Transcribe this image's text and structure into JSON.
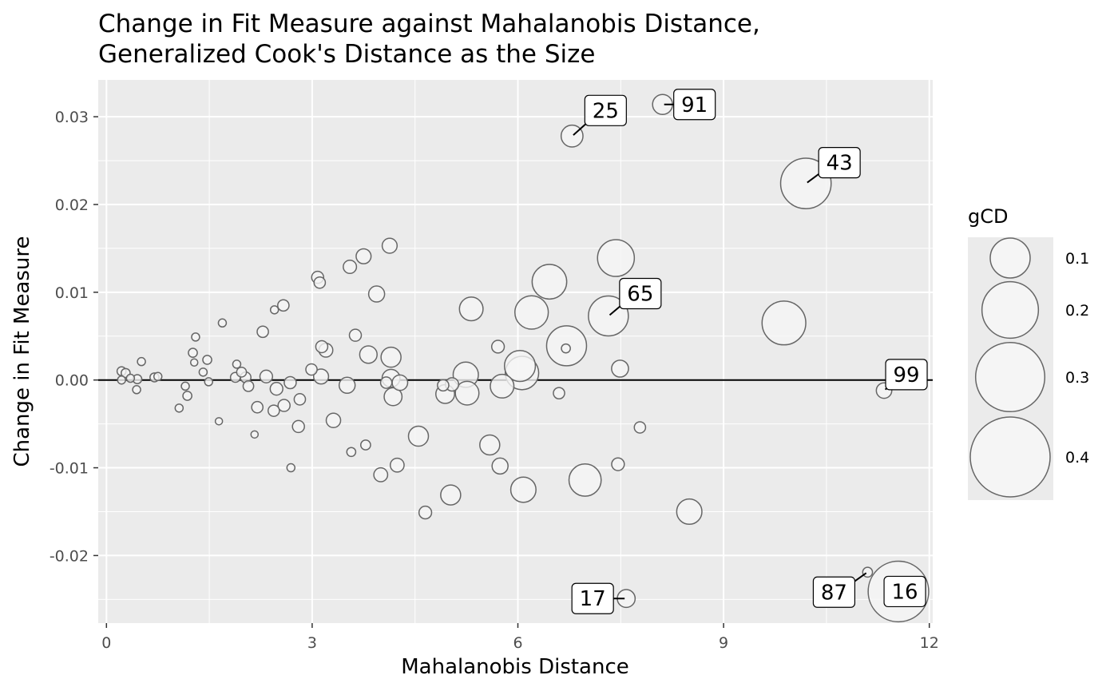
{
  "chart_data": {
    "type": "scatter",
    "title": "Change in Fit Measure against Mahalanobis Distance,",
    "subtitle": "Generalized Cook's Distance as the Size",
    "xlabel": "Mahalanobis Distance",
    "ylabel": "Change in Fit Measure",
    "xlim": [
      -0.12,
      12.05
    ],
    "ylim": [
      -0.0277,
      0.0342
    ],
    "x_ticks": [
      0,
      3,
      6,
      9,
      12
    ],
    "x_tick_labels": [
      "0",
      "3",
      "6",
      "9",
      "12"
    ],
    "y_ticks": [
      -0.02,
      -0.01,
      0.0,
      0.01,
      0.02,
      0.03
    ],
    "y_tick_labels": [
      "-0.02",
      "-0.01",
      "0.00",
      "0.01",
      "0.02",
      "0.03"
    ],
    "hline": 0.0,
    "grid": true,
    "size_legend": {
      "title": "gCD",
      "placement": "right",
      "breaks": [
        0.1,
        0.2,
        0.3,
        0.4
      ],
      "labels": [
        "0.1",
        "0.2",
        "0.3",
        "0.4"
      ]
    },
    "points": [
      {
        "x": 0.22,
        "y": 0.001,
        "gcd": 0.005
      },
      {
        "x": 0.28,
        "y": 0.0008,
        "gcd": 0.005
      },
      {
        "x": 0.22,
        "y": 0.0,
        "gcd": 0.004
      },
      {
        "x": 0.35,
        "y": 0.0002,
        "gcd": 0.004
      },
      {
        "x": 0.45,
        "y": 0.0001,
        "gcd": 0.005
      },
      {
        "x": 0.44,
        "y": -0.0011,
        "gcd": 0.004
      },
      {
        "x": 0.51,
        "y": 0.0021,
        "gcd": 0.004
      },
      {
        "x": 0.7,
        "y": 0.0003,
        "gcd": 0.005
      },
      {
        "x": 0.75,
        "y": 0.0004,
        "gcd": 0.004
      },
      {
        "x": 1.06,
        "y": -0.0032,
        "gcd": 0.004
      },
      {
        "x": 1.15,
        "y": -0.0007,
        "gcd": 0.004
      },
      {
        "x": 1.18,
        "y": -0.0018,
        "gcd": 0.005
      },
      {
        "x": 1.26,
        "y": 0.0031,
        "gcd": 0.005
      },
      {
        "x": 1.3,
        "y": 0.0049,
        "gcd": 0.004
      },
      {
        "x": 1.28,
        "y": 0.002,
        "gcd": 0.003
      },
      {
        "x": 1.41,
        "y": 0.0009,
        "gcd": 0.004
      },
      {
        "x": 1.47,
        "y": 0.0023,
        "gcd": 0.005
      },
      {
        "x": 1.49,
        "y": -0.0002,
        "gcd": 0.004
      },
      {
        "x": 1.64,
        "y": -0.0047,
        "gcd": 0.003
      },
      {
        "x": 1.69,
        "y": 0.0065,
        "gcd": 0.004
      },
      {
        "x": 1.9,
        "y": 0.0018,
        "gcd": 0.004
      },
      {
        "x": 1.88,
        "y": 0.0003,
        "gcd": 0.006
      },
      {
        "x": 1.97,
        "y": 0.0009,
        "gcd": 0.006
      },
      {
        "x": 2.03,
        "y": 0.0003,
        "gcd": 0.007
      },
      {
        "x": 2.07,
        "y": -0.0007,
        "gcd": 0.007
      },
      {
        "x": 2.16,
        "y": -0.0062,
        "gcd": 0.003
      },
      {
        "x": 2.2,
        "y": -0.0031,
        "gcd": 0.008
      },
      {
        "x": 2.28,
        "y": 0.0055,
        "gcd": 0.008
      },
      {
        "x": 2.33,
        "y": 0.0004,
        "gcd": 0.01
      },
      {
        "x": 2.44,
        "y": -0.0035,
        "gcd": 0.008
      },
      {
        "x": 2.48,
        "y": -0.001,
        "gcd": 0.01
      },
      {
        "x": 2.45,
        "y": 0.008,
        "gcd": 0.004
      },
      {
        "x": 2.58,
        "y": 0.0085,
        "gcd": 0.008
      },
      {
        "x": 2.59,
        "y": -0.0029,
        "gcd": 0.009
      },
      {
        "x": 2.68,
        "y": -0.0003,
        "gcd": 0.009
      },
      {
        "x": 2.69,
        "y": -0.01,
        "gcd": 0.004
      },
      {
        "x": 2.8,
        "y": -0.0053,
        "gcd": 0.009
      },
      {
        "x": 2.82,
        "y": -0.0022,
        "gcd": 0.008
      },
      {
        "x": 2.99,
        "y": 0.0012,
        "gcd": 0.008
      },
      {
        "x": 3.08,
        "y": 0.0117,
        "gcd": 0.009
      },
      {
        "x": 3.11,
        "y": 0.0111,
        "gcd": 0.008
      },
      {
        "x": 3.14,
        "y": 0.0038,
        "gcd": 0.009
      },
      {
        "x": 3.13,
        "y": 0.0004,
        "gcd": 0.014
      },
      {
        "x": 3.2,
        "y": 0.0034,
        "gcd": 0.012
      },
      {
        "x": 3.31,
        "y": -0.0046,
        "gcd": 0.013
      },
      {
        "x": 3.51,
        "y": -0.0006,
        "gcd": 0.016
      },
      {
        "x": 3.55,
        "y": 0.0129,
        "gcd": 0.011
      },
      {
        "x": 3.57,
        "y": -0.0082,
        "gcd": 0.005
      },
      {
        "x": 3.63,
        "y": 0.0051,
        "gcd": 0.009
      },
      {
        "x": 3.75,
        "y": 0.0141,
        "gcd": 0.014
      },
      {
        "x": 3.78,
        "y": -0.0074,
        "gcd": 0.006
      },
      {
        "x": 3.82,
        "y": 0.0029,
        "gcd": 0.019
      },
      {
        "x": 3.94,
        "y": 0.0098,
        "gcd": 0.016
      },
      {
        "x": 4.0,
        "y": -0.0108,
        "gcd": 0.012
      },
      {
        "x": 4.08,
        "y": -0.0003,
        "gcd": 0.008
      },
      {
        "x": 4.13,
        "y": 0.0153,
        "gcd": 0.014
      },
      {
        "x": 4.15,
        "y": 0.0026,
        "gcd": 0.025
      },
      {
        "x": 4.15,
        "y": 0.0002,
        "gcd": 0.02
      },
      {
        "x": 4.18,
        "y": -0.0019,
        "gcd": 0.02
      },
      {
        "x": 4.24,
        "y": -0.0097,
        "gcd": 0.012
      },
      {
        "x": 4.28,
        "y": -0.0003,
        "gcd": 0.015
      },
      {
        "x": 4.55,
        "y": -0.0064,
        "gcd": 0.025
      },
      {
        "x": 4.65,
        "y": -0.0151,
        "gcd": 0.01
      },
      {
        "x": 4.91,
        "y": -0.0006,
        "gcd": 0.008
      },
      {
        "x": 4.94,
        "y": -0.0016,
        "gcd": 0.022
      },
      {
        "x": 5.02,
        "y": -0.0131,
        "gcd": 0.025
      },
      {
        "x": 5.04,
        "y": -0.0005,
        "gcd": 0.011
      },
      {
        "x": 5.24,
        "y": 0.0006,
        "gcd": 0.04
      },
      {
        "x": 5.26,
        "y": -0.0015,
        "gcd": 0.035
      },
      {
        "x": 5.32,
        "y": 0.0081,
        "gcd": 0.035
      },
      {
        "x": 5.59,
        "y": -0.0074,
        "gcd": 0.025
      },
      {
        "x": 5.71,
        "y": 0.0038,
        "gcd": 0.01
      },
      {
        "x": 5.74,
        "y": -0.0098,
        "gcd": 0.016
      },
      {
        "x": 5.77,
        "y": -0.0007,
        "gcd": 0.035
      },
      {
        "x": 6.03,
        "y": 0.0016,
        "gcd": 0.06
      },
      {
        "x": 6.06,
        "y": 0.0008,
        "gcd": 0.07
      },
      {
        "x": 6.08,
        "y": -0.0125,
        "gcd": 0.04
      },
      {
        "x": 6.2,
        "y": 0.0077,
        "gcd": 0.07
      },
      {
        "x": 6.46,
        "y": 0.0112,
        "gcd": 0.075
      },
      {
        "x": 6.6,
        "y": -0.0015,
        "gcd": 0.008
      },
      {
        "x": 6.7,
        "y": 0.0036,
        "gcd": 0.005
      },
      {
        "x": 6.71,
        "y": 0.0039,
        "gcd": 0.1
      },
      {
        "x": 6.79,
        "y": 0.0278,
        "gcd": 0.03,
        "label": "25"
      },
      {
        "x": 6.98,
        "y": -0.0114,
        "gcd": 0.065
      },
      {
        "x": 7.32,
        "y": 0.0073,
        "gcd": 0.1,
        "label": "65"
      },
      {
        "x": 7.43,
        "y": 0.0139,
        "gcd": 0.085
      },
      {
        "x": 7.46,
        "y": -0.0096,
        "gcd": 0.01
      },
      {
        "x": 7.49,
        "y": 0.0013,
        "gcd": 0.018
      },
      {
        "x": 7.58,
        "y": -0.0249,
        "gcd": 0.02,
        "label": "17"
      },
      {
        "x": 7.78,
        "y": -0.0054,
        "gcd": 0.008
      },
      {
        "x": 8.11,
        "y": 0.0314,
        "gcd": 0.025,
        "label": "91"
      },
      {
        "x": 8.5,
        "y": -0.015,
        "gcd": 0.04
      },
      {
        "x": 9.88,
        "y": 0.0065,
        "gcd": 0.12
      },
      {
        "x": 10.2,
        "y": 0.0224,
        "gcd": 0.16,
        "label": "43"
      },
      {
        "x": 11.1,
        "y": -0.0219,
        "gcd": 0.006,
        "label": "87"
      },
      {
        "x": 11.34,
        "y": -0.0012,
        "gcd": 0.015,
        "label": "99"
      },
      {
        "x": 11.55,
        "y": -0.0241,
        "gcd": 0.23,
        "label": "16"
      }
    ],
    "point_fill": "#f5f5f5",
    "point_stroke": "#666666",
    "panel_background": "#ebebeb",
    "grid_color": "#ffffff"
  }
}
